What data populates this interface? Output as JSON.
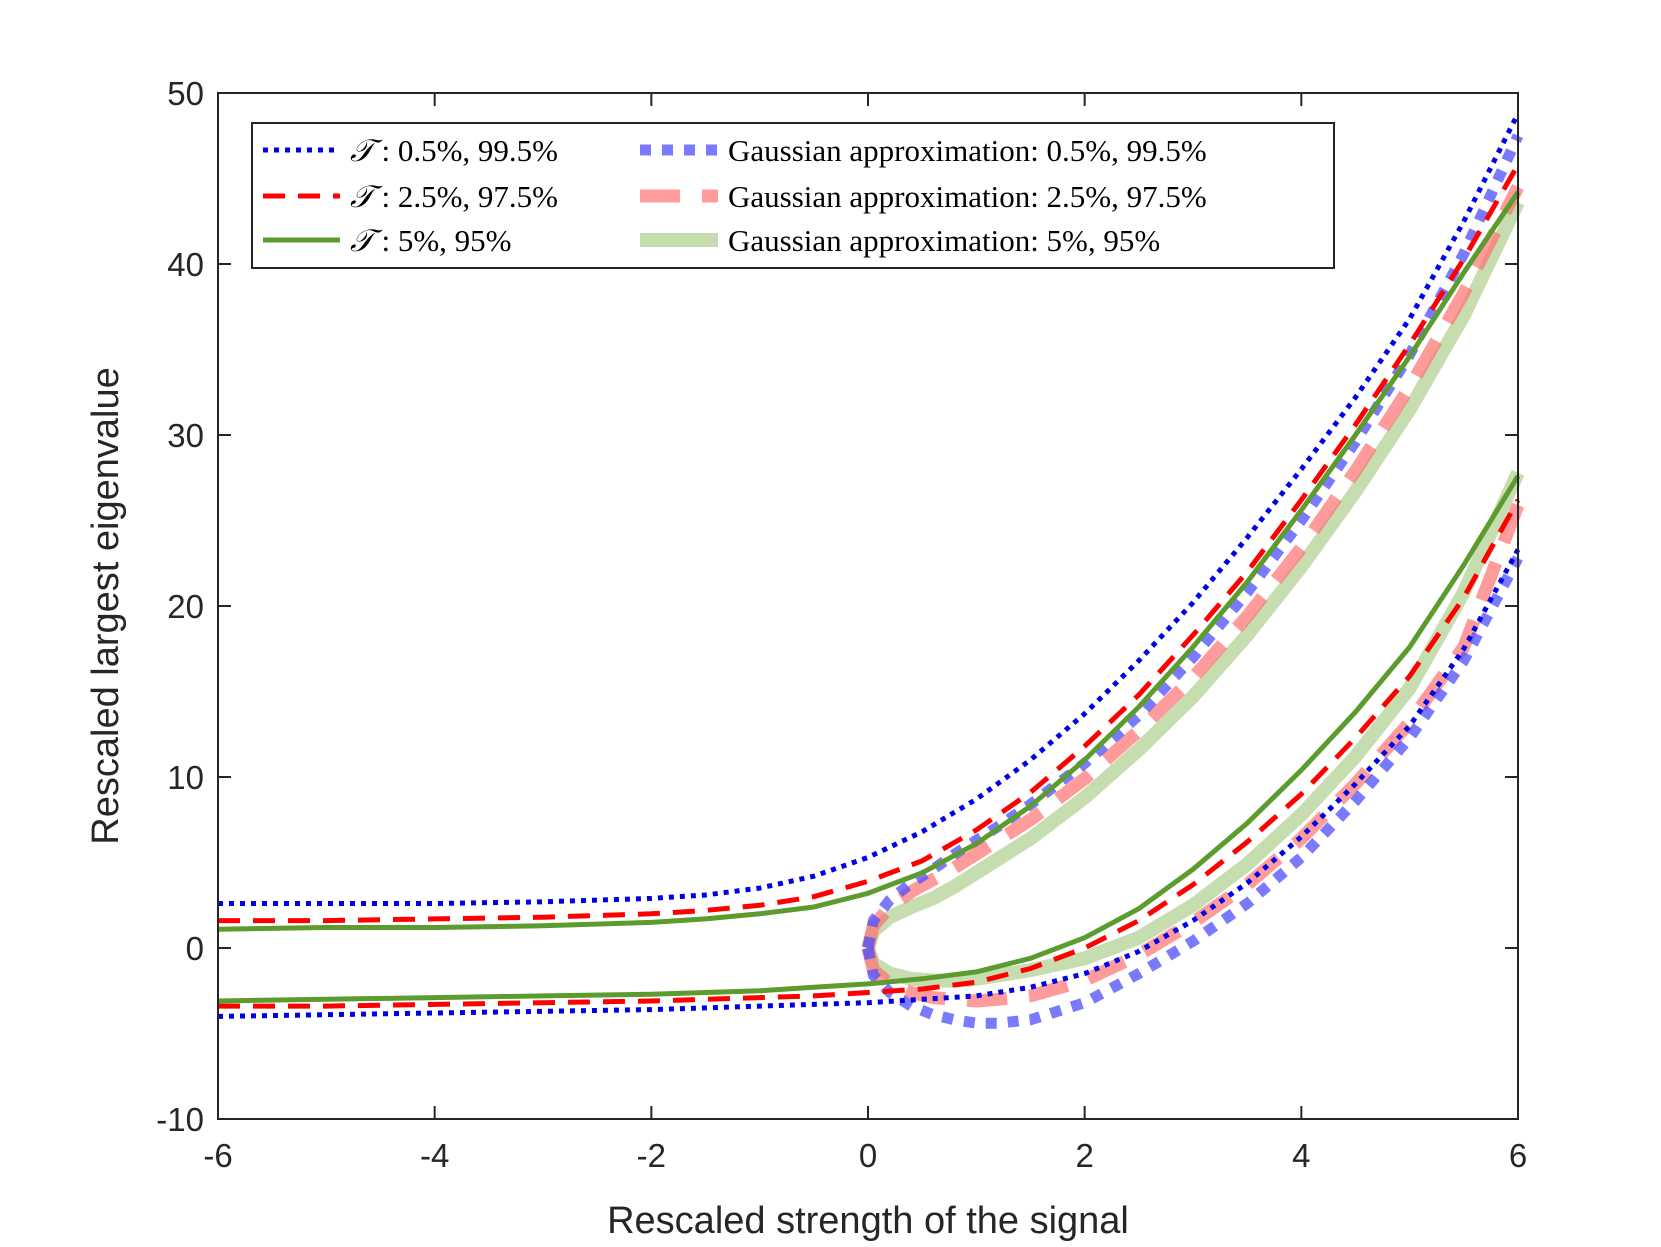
{
  "chart_data": {
    "type": "line",
    "title": "",
    "xlabel": "Rescaled strength of the signal",
    "ylabel": "Rescaled largest eigenvalue",
    "xlim": [
      -6,
      6
    ],
    "ylim": [
      -10,
      50
    ],
    "xticks": [
      -6,
      -4,
      -2,
      0,
      2,
      4,
      6
    ],
    "xtick_labels": [
      "-6",
      "-4",
      "-2",
      "0",
      "2",
      "4",
      "6"
    ],
    "yticks": [
      -10,
      0,
      10,
      20,
      30,
      40,
      50
    ],
    "ytick_labels": [
      "-10",
      "0",
      "10",
      "20",
      "30",
      "40",
      "50"
    ],
    "grid": false,
    "legend_position": "top-left",
    "legend": [
      {
        "symbol": "𝒯",
        "text": " :  0.5%, 99.5%",
        "series": "T995"
      },
      {
        "symbol": "𝒯",
        "text": " :  2.5%, 97.5%",
        "series": "T975"
      },
      {
        "symbol": "𝒯",
        "text": " :  5%, 95%",
        "series": "T95"
      },
      {
        "symbol": "",
        "text": "Gaussian approximation: 0.5%, 99.5%",
        "series": "G995"
      },
      {
        "symbol": "",
        "text": "Gaussian approximation: 2.5%, 97.5%",
        "series": "G975"
      },
      {
        "symbol": "",
        "text": "Gaussian approximation: 5%, 95%",
        "series": "G95"
      }
    ],
    "series": [
      {
        "id": "T995",
        "color": "#0000e6",
        "style": "dotted",
        "width": 5,
        "opacity": 1,
        "x": [
          -6,
          -5,
          -4,
          -3,
          -2,
          -1.5,
          -1,
          -0.5,
          0,
          0.5,
          1,
          1.5,
          2,
          2.5,
          3,
          3.5,
          4,
          4.5,
          5,
          5.5,
          6
        ],
        "upper": [
          2.6,
          2.6,
          2.6,
          2.7,
          2.9,
          3.1,
          3.5,
          4.2,
          5.3,
          6.8,
          8.7,
          11.0,
          13.7,
          16.8,
          20.2,
          24.0,
          28.0,
          32.2,
          36.8,
          42.5,
          48.8
        ],
        "lower": [
          -4.0,
          -3.9,
          -3.8,
          -3.7,
          -3.6,
          -3.5,
          -3.4,
          -3.3,
          -3.2,
          -3.0,
          -2.8,
          -2.3,
          -1.5,
          -0.2,
          1.6,
          3.8,
          6.5,
          9.6,
          13.0,
          17.5,
          23.3
        ]
      },
      {
        "id": "T975",
        "color": "#ff0000",
        "style": "dashed",
        "width": 5,
        "opacity": 1,
        "x": [
          -6,
          -5,
          -4,
          -3,
          -2,
          -1.5,
          -1,
          -0.5,
          0,
          0.5,
          1,
          1.5,
          2,
          2.5,
          3,
          3.5,
          4,
          4.5,
          5,
          5.5,
          6
        ],
        "upper": [
          1.6,
          1.6,
          1.7,
          1.8,
          2.0,
          2.2,
          2.5,
          3.0,
          3.9,
          5.1,
          6.9,
          9.1,
          11.8,
          14.8,
          18.3,
          22.0,
          26.2,
          30.6,
          35.3,
          40.3,
          45.8
        ],
        "lower": [
          -3.4,
          -3.4,
          -3.3,
          -3.2,
          -3.1,
          -3.0,
          -2.9,
          -2.8,
          -2.6,
          -2.4,
          -2.0,
          -1.2,
          0.0,
          1.6,
          3.7,
          6.2,
          9.0,
          12.3,
          15.9,
          20.5,
          26.2
        ]
      },
      {
        "id": "T95",
        "color": "#5c9b2d",
        "style": "solid",
        "width": 5,
        "opacity": 1,
        "x": [
          -6,
          -5,
          -4,
          -3,
          -2,
          -1.5,
          -1,
          -0.5,
          0,
          0.5,
          1,
          1.5,
          2,
          2.5,
          3,
          3.5,
          4,
          4.5,
          5,
          5.5,
          6
        ],
        "upper": [
          1.1,
          1.2,
          1.2,
          1.3,
          1.5,
          1.7,
          2.0,
          2.4,
          3.2,
          4.4,
          6.1,
          8.3,
          11.0,
          14.1,
          17.6,
          21.4,
          25.6,
          30.0,
          34.6,
          39.5,
          44.2
        ],
        "lower": [
          -3.1,
          -3.0,
          -2.9,
          -2.8,
          -2.7,
          -2.6,
          -2.5,
          -2.3,
          -2.1,
          -1.8,
          -1.4,
          -0.6,
          0.6,
          2.3,
          4.6,
          7.3,
          10.4,
          13.8,
          17.6,
          22.4,
          27.6
        ]
      },
      {
        "id": "G995",
        "color": "#4d4dff",
        "style": "dotted-thick",
        "width": 11,
        "opacity": 0.75,
        "x": [
          0,
          0.05,
          0.2,
          0.4,
          0.6,
          0.8,
          1.0,
          1.2,
          1.5,
          2.0,
          2.5,
          3.0,
          3.5,
          4.0,
          4.5,
          5.0,
          5.5,
          6.0
        ],
        "upper": [
          0,
          1.6,
          2.8,
          3.8,
          4.6,
          5.5,
          6.3,
          7.1,
          8.4,
          10.8,
          13.6,
          17.0,
          20.8,
          25.0,
          29.6,
          34.7,
          40.6,
          47.5
        ],
        "lower": [
          0,
          -1.6,
          -2.6,
          -3.4,
          -3.9,
          -4.2,
          -4.4,
          -4.4,
          -4.2,
          -3.2,
          -1.5,
          0.4,
          2.6,
          5.3,
          8.6,
          12.3,
          16.8,
          22.8
        ]
      },
      {
        "id": "G975",
        "color": "#ff7070",
        "style": "dashed-thick",
        "width": 13,
        "opacity": 0.7,
        "x": [
          0,
          0.05,
          0.2,
          0.4,
          0.6,
          0.8,
          1.0,
          1.2,
          1.5,
          2.0,
          2.5,
          3.0,
          3.5,
          4.0,
          4.5,
          5.0,
          5.5,
          6.0
        ],
        "upper": [
          0,
          1.3,
          2.4,
          3.3,
          4.0,
          4.7,
          5.5,
          6.3,
          7.5,
          9.9,
          12.7,
          15.8,
          19.4,
          23.4,
          27.9,
          32.8,
          38.3,
          44.5
        ],
        "lower": [
          0,
          -1.3,
          -2.1,
          -2.6,
          -2.9,
          -3.0,
          -3.1,
          -3.0,
          -2.8,
          -1.9,
          -0.4,
          1.5,
          3.7,
          6.4,
          9.6,
          13.2,
          17.6,
          25.9
        ]
      },
      {
        "id": "G95",
        "color": "#a8cc84",
        "style": "solid",
        "width": 14,
        "opacity": 0.65,
        "x": [
          0,
          0.05,
          0.2,
          0.4,
          0.6,
          0.8,
          1.0,
          1.2,
          1.5,
          2.0,
          2.5,
          3.0,
          3.5,
          4.0,
          4.5,
          5.0,
          5.5,
          6.0
        ],
        "upper": [
          0,
          1.0,
          1.8,
          2.4,
          2.9,
          3.6,
          4.4,
          5.2,
          6.4,
          8.8,
          11.6,
          14.7,
          18.3,
          22.3,
          26.7,
          31.5,
          37.0,
          43.6
        ],
        "lower": [
          0,
          -0.9,
          -1.5,
          -1.8,
          -1.9,
          -1.9,
          -1.8,
          -1.6,
          -1.3,
          -0.6,
          0.6,
          2.5,
          4.9,
          7.8,
          11.2,
          15.2,
          20.8,
          27.8
        ]
      }
    ]
  }
}
